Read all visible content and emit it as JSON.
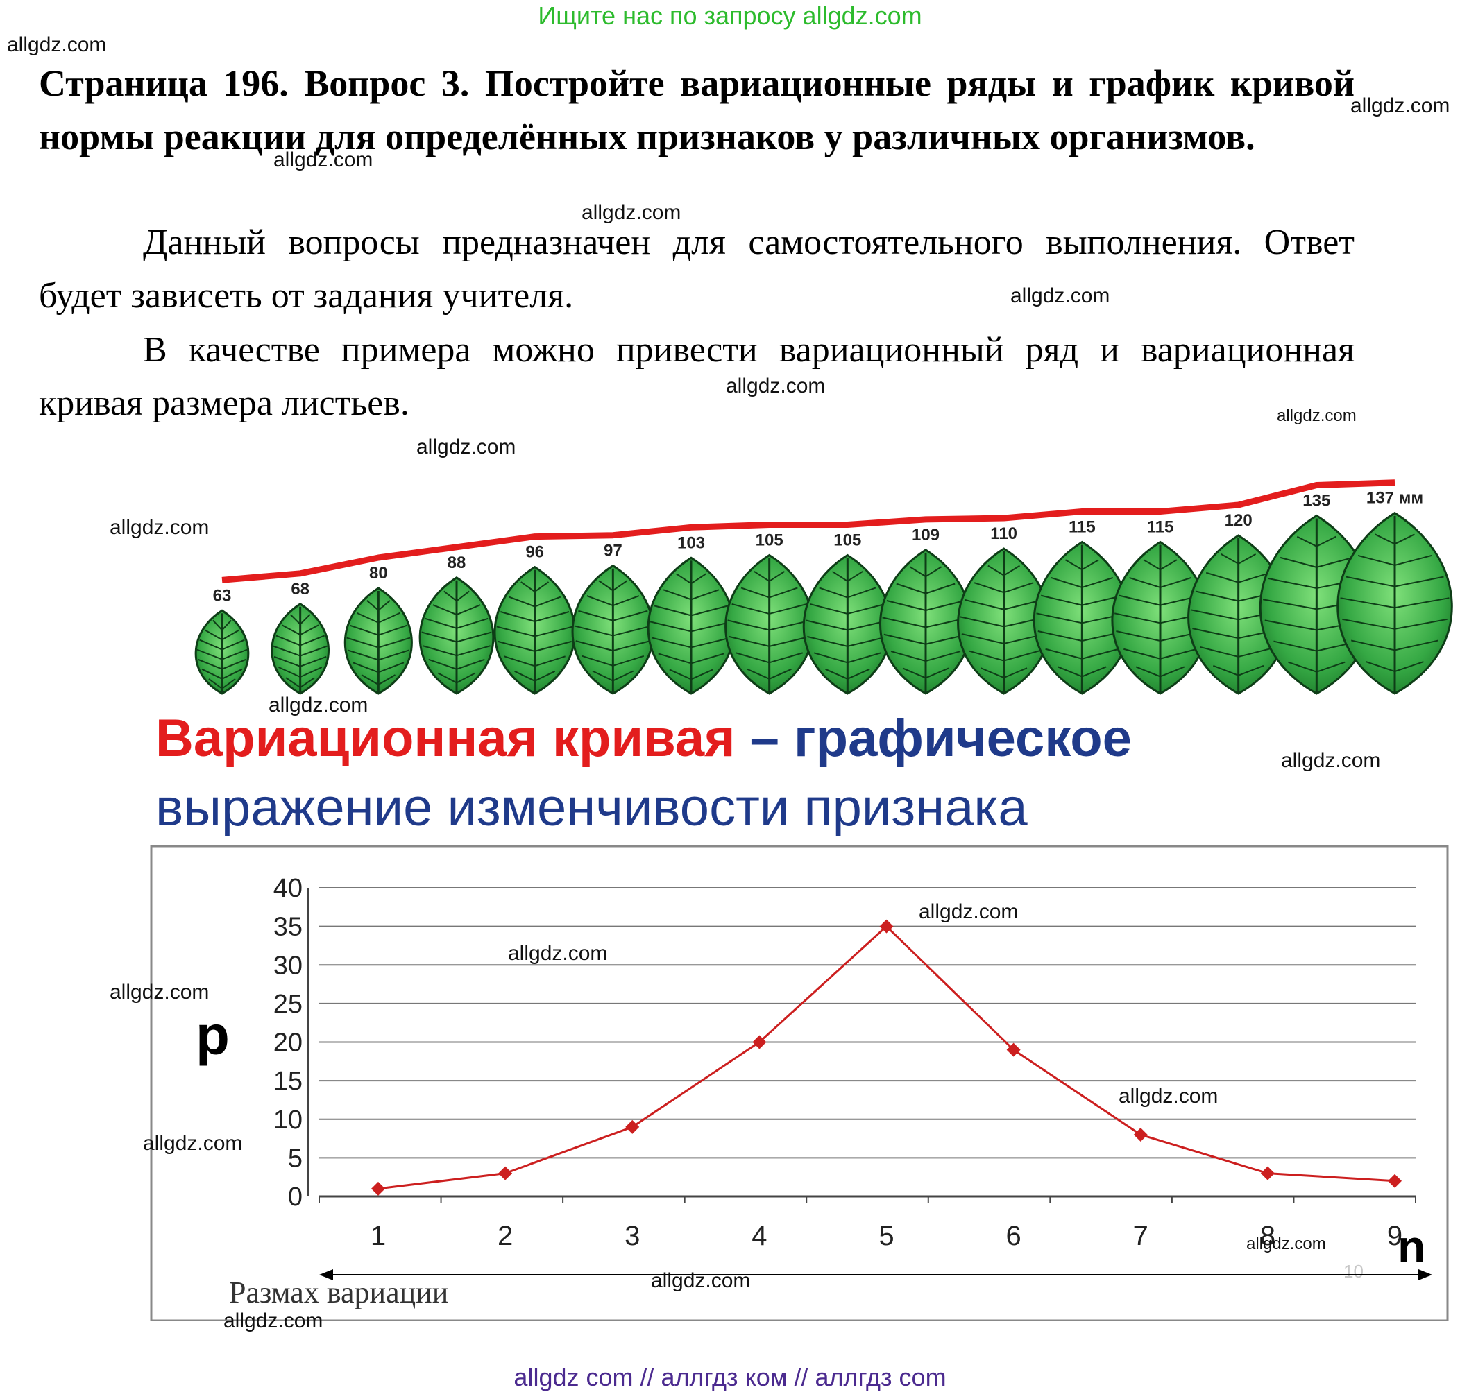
{
  "top_banner": "Ищите нас по запросу allgdz.com",
  "heading": "Страница 196. Вопрос 3. Постройте вариационные ряды и график кривой нормы реакции для определённых признаков у различных организмов.",
  "paragraph1": "Данный вопросы предназначен для самостоятельного выполнения. Ответ будет зависеть от задания учителя.",
  "paragraph2": "В качестве примера можно привести вариационный ряд и вариационная кривая размера листьев.",
  "watermark": "allgdz.com",
  "bottom_banner": "allgdz com  //  аллгдз ком  //  аллгдз com",
  "figure": {
    "leaf_sizes": [
      {
        "label": "63",
        "value": 63
      },
      {
        "label": "68",
        "value": 68
      },
      {
        "label": "80",
        "value": 80
      },
      {
        "label": "88",
        "value": 88
      },
      {
        "label": "96",
        "value": 96
      },
      {
        "label": "97",
        "value": 97
      },
      {
        "label": "103",
        "value": 103
      },
      {
        "label": "105",
        "value": 105
      },
      {
        "label": "105",
        "value": 105
      },
      {
        "label": "109",
        "value": 109
      },
      {
        "label": "110",
        "value": 110
      },
      {
        "label": "115",
        "value": 115
      },
      {
        "label": "115",
        "value": 115
      },
      {
        "label": "120",
        "value": 120
      },
      {
        "label": "135",
        "value": 135
      },
      {
        "label": "137 мм",
        "value": 137
      }
    ],
    "title_red": "Вариационная кривая",
    "title_dash": " – ",
    "title_blue1": "графическое",
    "title_blue2": "выражение изменчивости признака",
    "range_label": "Размах вариации",
    "colors": {
      "red": "#e31d1d",
      "blue": "#1f3a8a",
      "line": "#cc1f1f",
      "leaf_dark": "#1c7a2a",
      "leaf_light": "#5fcf62"
    }
  },
  "chart_data": {
    "type": "line",
    "x": [
      1,
      2,
      3,
      4,
      5,
      6,
      7,
      8,
      9
    ],
    "values": [
      1,
      3,
      9,
      20,
      35,
      19,
      8,
      3,
      2
    ],
    "xlabel": "n",
    "ylabel": "p",
    "xticks": [
      "1",
      "2",
      "3",
      "4",
      "5",
      "6",
      "7",
      "8",
      "9"
    ],
    "yticks": [
      "0",
      "5",
      "10",
      "15",
      "20",
      "25",
      "30",
      "35",
      "40"
    ],
    "ylim": [
      0,
      40
    ],
    "grid": true,
    "color": "#cc1f1f",
    "faint_label": "10"
  }
}
